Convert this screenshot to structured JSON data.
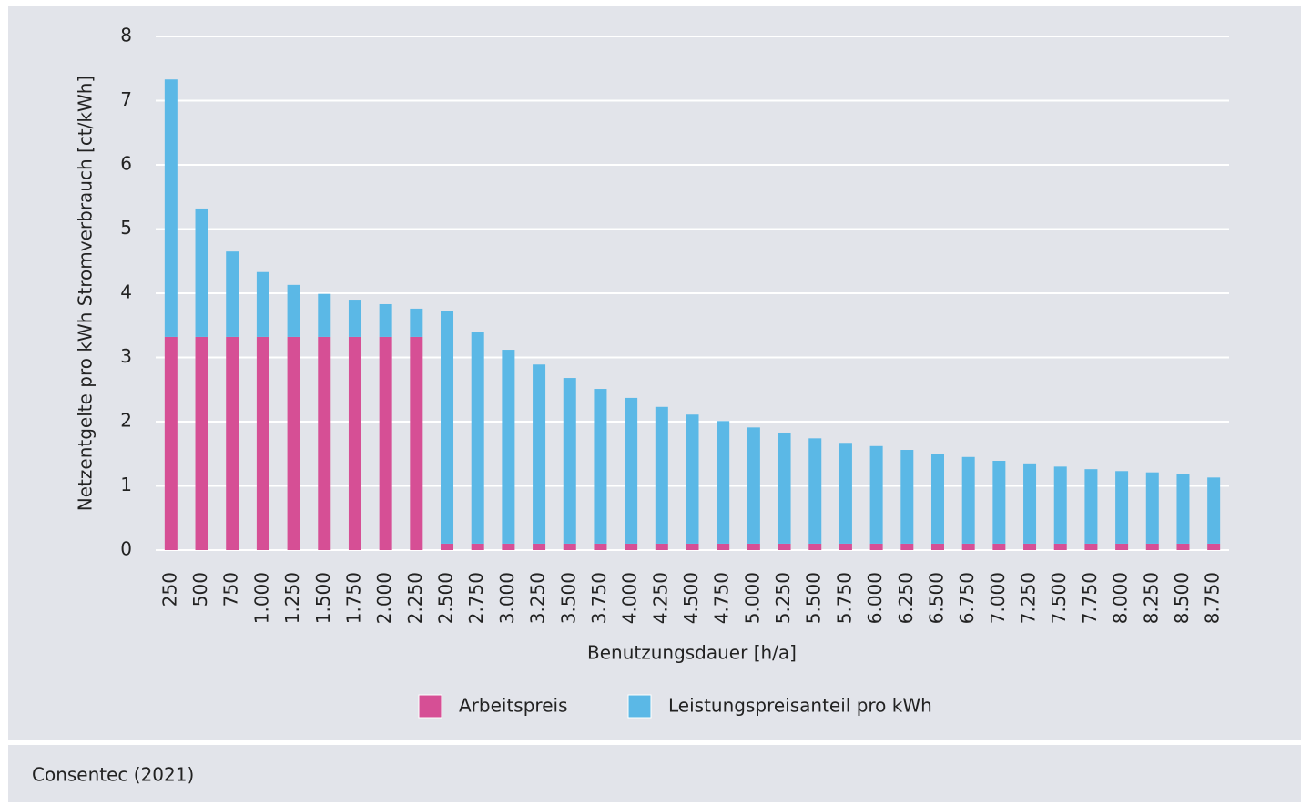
{
  "chart_data": {
    "type": "bar",
    "stacked": true,
    "categories": [
      "250",
      "500",
      "750",
      "1.000",
      "1.250",
      "1.500",
      "1.750",
      "2.000",
      "2.250",
      "2.500",
      "2.750",
      "3.000",
      "3.250",
      "3.500",
      "3.750",
      "4.000",
      "4.250",
      "4.500",
      "4.750",
      "5.000",
      "5.250",
      "5.500",
      "5.750",
      "6.000",
      "6.250",
      "6.500",
      "6.750",
      "7.000",
      "7.250",
      "7.500",
      "7.750",
      "8.000",
      "8.250",
      "8.500",
      "8.750"
    ],
    "series": [
      {
        "name": "Arbeitspreis",
        "color": "#d64f95",
        "values": [
          3.32,
          3.32,
          3.32,
          3.32,
          3.32,
          3.32,
          3.32,
          3.32,
          3.32,
          0.1,
          0.1,
          0.1,
          0.1,
          0.1,
          0.1,
          0.1,
          0.1,
          0.1,
          0.1,
          0.1,
          0.1,
          0.1,
          0.1,
          0.1,
          0.1,
          0.1,
          0.1,
          0.1,
          0.1,
          0.1,
          0.1,
          0.1,
          0.1,
          0.1,
          0.1
        ]
      },
      {
        "name": "Leistungspreisanteil pro kWh",
        "color": "#5bb8e6",
        "values": [
          4.01,
          2.0,
          1.33,
          1.01,
          0.81,
          0.67,
          0.58,
          0.51,
          0.44,
          3.62,
          3.29,
          3.02,
          2.79,
          2.58,
          2.41,
          2.27,
          2.13,
          2.01,
          1.91,
          1.81,
          1.73,
          1.64,
          1.57,
          1.52,
          1.46,
          1.4,
          1.35,
          1.29,
          1.25,
          1.2,
          1.16,
          1.13,
          1.11,
          1.08,
          1.03
        ]
      }
    ],
    "x_label": "Benutzungsdauer [h/a]",
    "y_label": "Netzentgelte pro kWh Stromverbrauch [ct/kWh]",
    "ylim": [
      0,
      8
    ],
    "yticks": [
      0,
      1,
      2,
      3,
      4,
      5,
      6,
      7,
      8
    ],
    "grid": true,
    "source": "Consentec (2021)"
  }
}
